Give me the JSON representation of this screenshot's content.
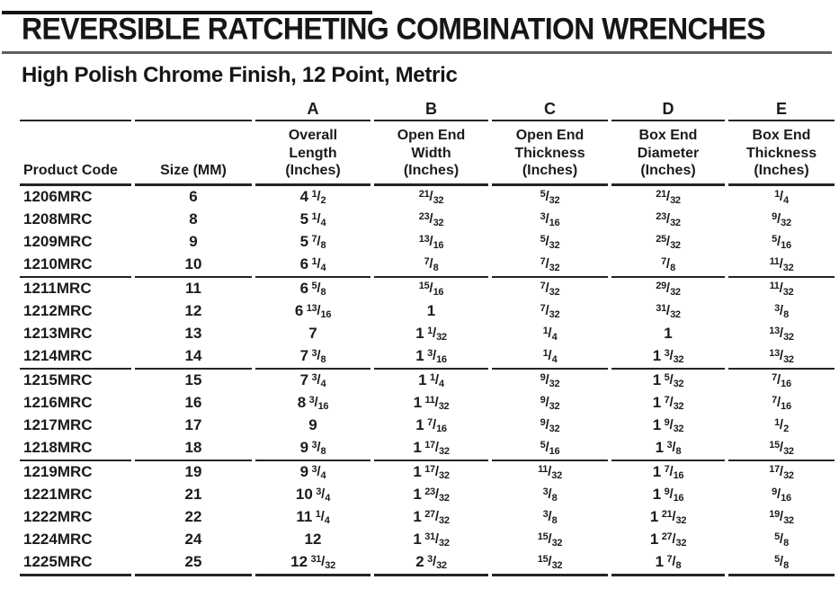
{
  "header": {
    "title": "REVERSIBLE RATCHETING COMBINATION WRENCHES",
    "subtitle": "High Polish Chrome Finish, 12 Point, Metric"
  },
  "colors": {
    "text": "#1b1b1b",
    "title_rule": "#5f5f5f",
    "table_lines": "#242424",
    "top_bar": "#141414"
  },
  "table": {
    "columns": [
      {
        "letter": "",
        "header_lines": [
          "Product Code"
        ]
      },
      {
        "letter": "",
        "header_lines": [
          "Size (MM)"
        ]
      },
      {
        "letter": "A",
        "header_lines": [
          "Overall",
          "Length",
          "(Inches)"
        ]
      },
      {
        "letter": "B",
        "header_lines": [
          "Open End",
          "Width",
          "(Inches)"
        ]
      },
      {
        "letter": "C",
        "header_lines": [
          "Open End",
          "Thickness",
          "(Inches)"
        ]
      },
      {
        "letter": "D",
        "header_lines": [
          "Box End",
          "Diameter",
          "(Inches)"
        ]
      },
      {
        "letter": "E",
        "header_lines": [
          "Box End",
          "Thickness",
          "(Inches)"
        ]
      }
    ],
    "groups": [
      {
        "rows": [
          {
            "product_code": "1206MRC",
            "size_mm": "6",
            "a": "4 1/2",
            "b": "21/32",
            "c": "5/32",
            "d": "21/32",
            "e": "1/4"
          },
          {
            "product_code": "1208MRC",
            "size_mm": "8",
            "a": "5 1/4",
            "b": "23/32",
            "c": "3/16",
            "d": "23/32",
            "e": "9/32"
          },
          {
            "product_code": "1209MRC",
            "size_mm": "9",
            "a": "5 7/8",
            "b": "13/16",
            "c": "5/32",
            "d": "25/32",
            "e": "5/16"
          },
          {
            "product_code": "1210MRC",
            "size_mm": "10",
            "a": "6 1/4",
            "b": "7/8",
            "c": "7/32",
            "d": "7/8",
            "e": "11/32"
          }
        ]
      },
      {
        "rows": [
          {
            "product_code": "1211MRC",
            "size_mm": "11",
            "a": "6 5/8",
            "b": "15/16",
            "c": "7/32",
            "d": "29/32",
            "e": "11/32"
          },
          {
            "product_code": "1212MRC",
            "size_mm": "12",
            "a": "6 13/16",
            "b": "1",
            "c": "7/32",
            "d": "31/32",
            "e": "3/8"
          },
          {
            "product_code": "1213MRC",
            "size_mm": "13",
            "a": "7",
            "b": "1 1/32",
            "c": "1/4",
            "d": "1",
            "e": "13/32"
          },
          {
            "product_code": "1214MRC",
            "size_mm": "14",
            "a": "7 3/8",
            "b": "1 3/16",
            "c": "1/4",
            "d": "1 3/32",
            "e": "13/32"
          }
        ]
      },
      {
        "rows": [
          {
            "product_code": "1215MRC",
            "size_mm": "15",
            "a": "7 3/4",
            "b": "1 1/4",
            "c": "9/32",
            "d": "1 5/32",
            "e": "7/16"
          },
          {
            "product_code": "1216MRC",
            "size_mm": "16",
            "a": "8 3/16",
            "b": "1 11/32",
            "c": "9/32",
            "d": "1 7/32",
            "e": "7/16"
          },
          {
            "product_code": "1217MRC",
            "size_mm": "17",
            "a": "9",
            "b": "1 7/16",
            "c": "9/32",
            "d": "1 9/32",
            "e": "1/2"
          },
          {
            "product_code": "1218MRC",
            "size_mm": "18",
            "a": "9 3/8",
            "b": "1 17/32",
            "c": "5/16",
            "d": "1 3/8",
            "e": "15/32"
          }
        ]
      },
      {
        "rows": [
          {
            "product_code": "1219MRC",
            "size_mm": "19",
            "a": "9 3/4",
            "b": "1 17/32",
            "c": "11/32",
            "d": "1 7/16",
            "e": "17/32"
          },
          {
            "product_code": "1221MRC",
            "size_mm": "21",
            "a": "10 3/4",
            "b": "1 23/32",
            "c": "3/8",
            "d": "1 9/16",
            "e": "9/16"
          },
          {
            "product_code": "1222MRC",
            "size_mm": "22",
            "a": "11 1/4",
            "b": "1 27/32",
            "c": "3/8",
            "d": "1 21/32",
            "e": "19/32"
          },
          {
            "product_code": "1224MRC",
            "size_mm": "24",
            "a": "12",
            "b": "1 31/32",
            "c": "15/32",
            "d": "1 27/32",
            "e": "5/8"
          },
          {
            "product_code": "1225MRC",
            "size_mm": "25",
            "a": "12 31/32",
            "b": "2 3/32",
            "c": "15/32",
            "d": "1 7/8",
            "e": "5/8"
          }
        ]
      }
    ]
  }
}
